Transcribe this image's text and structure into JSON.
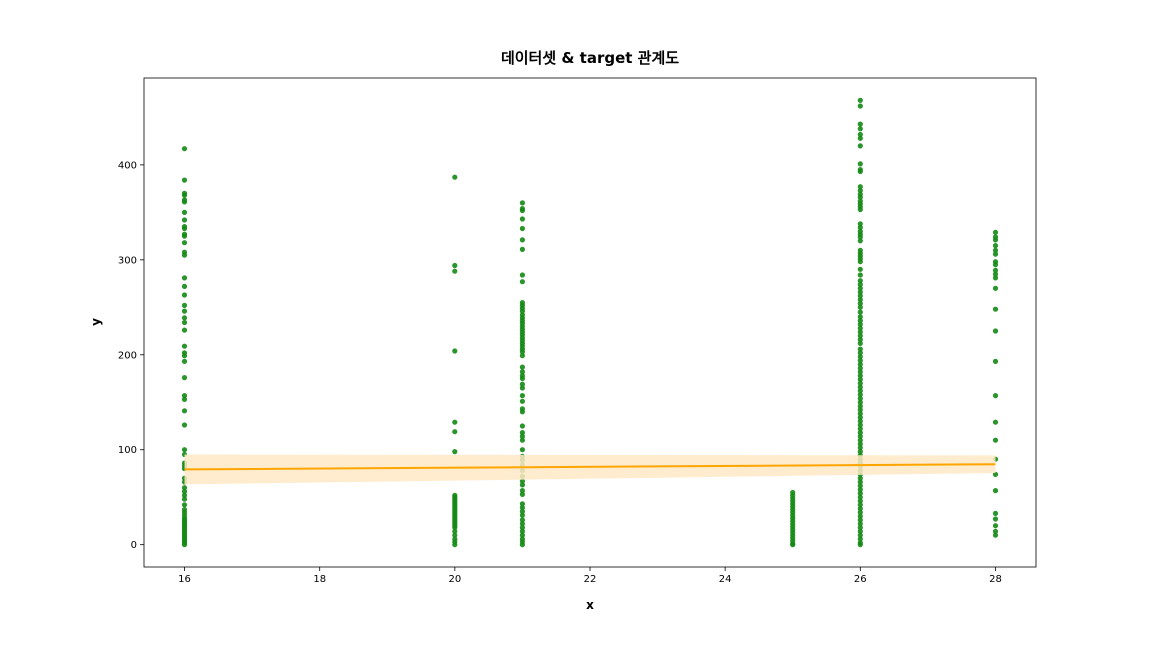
{
  "chart_data": {
    "type": "scatter",
    "title": "데이터셋 & target 관계도",
    "xlabel": "x",
    "ylabel": "y",
    "xlim": [
      15.4,
      28.6
    ],
    "ylim": [
      -23.5,
      491.5
    ],
    "x_ticks": [
      16,
      18,
      20,
      22,
      24,
      26,
      28
    ],
    "y_ticks": [
      0,
      100,
      200,
      300,
      400
    ],
    "grid": false,
    "colors": {
      "points": "#138a13",
      "regression_line": "#ffa500",
      "confidence_band": "#ffe9c7",
      "frame": "#000000"
    },
    "scatter": [
      {
        "x": 16,
        "y": [
          417,
          384,
          370,
          368,
          363,
          361,
          350,
          342,
          335,
          333,
          327,
          325,
          318,
          308,
          305,
          281,
          272,
          263,
          252,
          246,
          239,
          234,
          226,
          209,
          202,
          199,
          193,
          176,
          157,
          153,
          141,
          126,
          100,
          95,
          86,
          83,
          80,
          70,
          66,
          60,
          56,
          52,
          48,
          42,
          37,
          34,
          31,
          28,
          26,
          24,
          22,
          20,
          18,
          16,
          14,
          12,
          10,
          8,
          6,
          4,
          2,
          0
        ]
      },
      {
        "x": 20,
        "y": [
          387,
          294,
          288,
          204,
          129,
          119,
          98,
          52,
          50,
          48,
          46,
          44,
          42,
          40,
          38,
          36,
          34,
          32,
          30,
          28,
          26,
          24,
          22,
          20,
          18,
          14,
          10,
          6,
          3,
          0
        ]
      },
      {
        "x": 21,
        "y": [
          360,
          354,
          352,
          343,
          333,
          321,
          311,
          284,
          277,
          255,
          252,
          249,
          246,
          242,
          239,
          236,
          233,
          230,
          227,
          224,
          221,
          218,
          215,
          212,
          209,
          206,
          203,
          199,
          187,
          182,
          178,
          175,
          169,
          165,
          157,
          151,
          143,
          140,
          125,
          118,
          114,
          110,
          100,
          93,
          89,
          84,
          78,
          72,
          67,
          63,
          57,
          53,
          43,
          39,
          35,
          31,
          26,
          22,
          18,
          14,
          10,
          6,
          3,
          0
        ]
      },
      {
        "x": 25,
        "y": [
          55,
          52,
          49,
          46,
          43,
          40,
          37,
          34,
          31,
          28,
          25,
          22,
          19,
          16,
          13,
          10,
          7,
          4,
          1,
          0
        ]
      },
      {
        "x": 26,
        "y": [
          468,
          462,
          443,
          438,
          432,
          428,
          420,
          401,
          395,
          393,
          377,
          373,
          369,
          366,
          362,
          359,
          356,
          353,
          338,
          334,
          330,
          327,
          324,
          320,
          310,
          307,
          304,
          301,
          298,
          290,
          284,
          278,
          274,
          270,
          266,
          262,
          258,
          254,
          250,
          245,
          240,
          236,
          232,
          228,
          224,
          220,
          216,
          212,
          206,
          202,
          198,
          194,
          190,
          186,
          182,
          178,
          174,
          170,
          166,
          162,
          158,
          154,
          150,
          146,
          142,
          138,
          134,
          130,
          126,
          122,
          118,
          114,
          110,
          106,
          102,
          98,
          94,
          90,
          86,
          82,
          78,
          74,
          70,
          66,
          62,
          58,
          54,
          50,
          46,
          42,
          38,
          34,
          30,
          26,
          22,
          18,
          14,
          10,
          6,
          2,
          0
        ]
      },
      {
        "x": 28,
        "y": [
          329,
          324,
          321,
          315,
          310,
          306,
          298,
          295,
          289,
          285,
          281,
          270,
          248,
          225,
          193,
          157,
          129,
          110,
          90,
          74,
          57,
          33,
          27,
          20,
          14,
          10
        ]
      }
    ],
    "regression": {
      "x": [
        16,
        28
      ],
      "y": [
        79.3,
        84.8
      ],
      "ci_lower": [
        63.5,
        75.5
      ],
      "ci_upper": [
        95.0,
        94.0
      ]
    }
  }
}
